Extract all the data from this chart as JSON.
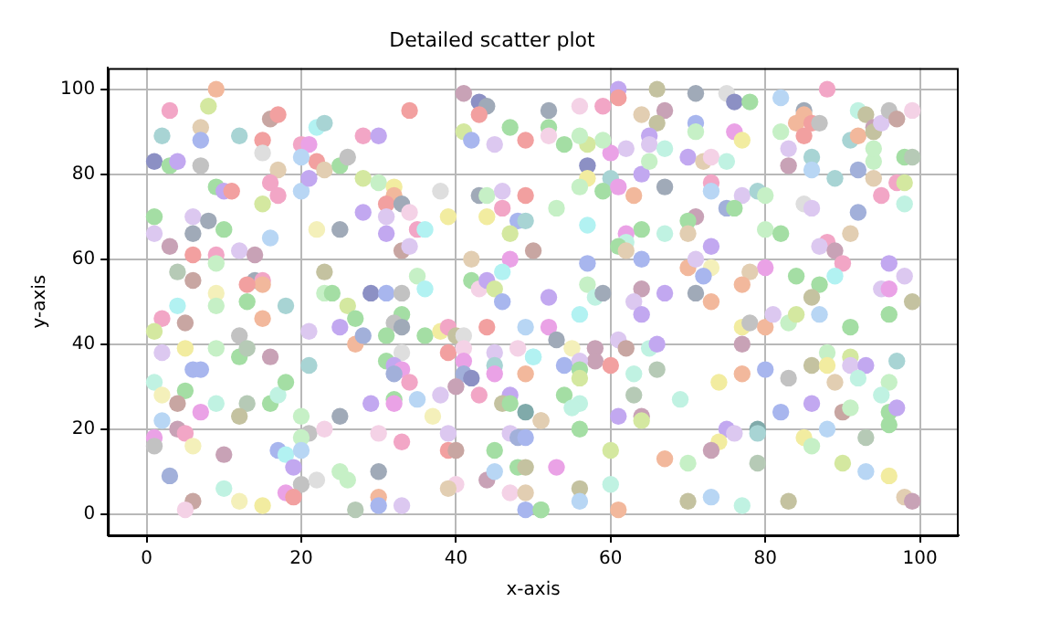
{
  "chart_data": {
    "type": "scatter",
    "title": "Detailed scatter plot",
    "xlabel": "x-axis",
    "ylabel": "y-axis",
    "xlim": [
      -5,
      105
    ],
    "ylim": [
      -5,
      105
    ],
    "xticks": [
      0,
      20,
      40,
      60,
      80,
      100
    ],
    "yticks": [
      0,
      20,
      40,
      60,
      80,
      100
    ],
    "grid": true,
    "marker": "circle",
    "series": [
      {
        "x": [
          9,
          3,
          8,
          16,
          17,
          2,
          7,
          7,
          12,
          15,
          1,
          3,
          4,
          7,
          15,
          17,
          20,
          21,
          22,
          23,
          22,
          23,
          25,
          26,
          20,
          28,
          30,
          34,
          41,
          43,
          44,
          43,
          41,
          42,
          45,
          47,
          49,
          9,
          10,
          11,
          16,
          17,
          15,
          20,
          21,
          28,
          30,
          32,
          32,
          31,
          33,
          34,
          28,
          31,
          35,
          36,
          31,
          39,
          38,
          43,
          44,
          46,
          49,
          44,
          46,
          48,
          49,
          47,
          1,
          1,
          6,
          8,
          10,
          6,
          3,
          6,
          9,
          9,
          12,
          14,
          16,
          22,
          25,
          33,
          34,
          42,
          47,
          50,
          4,
          6,
          14,
          15,
          15,
          13,
          9,
          13,
          4,
          9,
          23,
          23,
          24,
          26,
          29,
          31,
          33,
          35,
          36,
          42,
          43,
          44,
          45,
          46,
          46,
          18,
          61,
          61,
          66,
          71,
          75,
          76,
          78,
          82,
          88,
          52,
          56,
          59,
          52,
          52,
          64,
          67,
          66,
          71,
          71,
          65,
          65,
          67,
          62,
          60,
          59,
          57,
          56,
          54,
          57,
          57,
          60,
          56,
          59,
          61,
          64,
          65,
          63,
          67,
          70,
          72,
          73,
          75,
          76,
          77,
          73,
          73,
          77,
          79,
          80,
          75,
          76,
          71,
          70,
          67,
          70,
          64,
          62,
          62,
          61,
          62,
          53,
          57,
          73,
          80,
          82,
          82,
          84,
          85,
          85,
          86,
          87,
          85,
          83,
          83,
          86,
          86,
          89,
          92,
          94,
          94,
          94,
          91,
          92,
          92,
          93,
          94,
          94,
          95,
          96,
          97,
          99,
          98,
          99,
          97,
          98,
          95,
          98,
          85,
          86,
          92,
          91,
          88,
          87,
          89,
          90,
          89,
          87,
          84,
          80,
          78,
          77,
          73,
          72,
          70,
          71,
          73,
          71,
          67,
          64,
          64,
          57,
          57,
          58,
          59,
          63,
          52,
          96,
          98,
          95,
          96,
          99,
          86,
          2,
          1,
          5,
          15,
          27,
          33,
          32,
          33,
          21,
          25,
          31,
          36,
          38,
          39,
          40,
          41,
          44,
          49,
          12,
          27,
          28,
          2,
          5,
          9,
          12,
          13,
          16,
          6,
          7,
          1,
          2,
          5,
          4,
          7,
          9,
          13,
          16,
          17,
          18,
          21,
          33,
          31,
          32,
          33,
          32,
          34,
          29,
          32,
          32,
          35,
          38,
          37,
          39,
          41,
          41,
          41,
          42,
          40,
          43,
          45,
          45,
          45,
          48,
          50,
          49,
          47,
          46,
          47,
          49,
          51,
          2,
          4,
          5,
          12,
          1,
          1,
          6,
          10,
          20,
          25,
          21,
          20,
          23,
          30,
          33,
          39,
          39,
          40,
          45,
          47,
          48,
          49,
          17,
          18,
          20,
          19,
          3,
          10,
          20,
          22,
          25,
          26,
          30,
          18,
          19,
          6,
          5,
          12,
          15,
          27,
          30,
          30,
          33,
          40,
          39,
          44,
          45,
          48,
          49,
          47,
          49,
          49,
          51,
          64,
          52,
          56,
          53,
          55,
          58,
          58,
          61,
          62,
          65,
          66,
          60,
          56,
          54,
          56,
          56,
          63,
          66,
          50,
          77,
          78,
          80,
          81,
          83,
          84,
          87,
          91,
          96,
          77,
          77,
          80,
          83,
          88,
          86,
          88,
          91,
          91,
          93,
          92,
          89,
          97,
          96,
          95,
          74,
          69,
          63,
          54,
          56,
          55,
          51,
          61,
          64,
          64,
          56,
          82,
          86,
          90,
          91,
          96,
          97,
          96,
          75,
          76,
          79,
          79,
          74,
          73,
          85,
          88,
          86,
          93,
          60,
          67,
          70,
          79,
          53,
          90,
          93,
          96,
          60,
          56,
          56,
          61,
          51,
          70,
          73,
          77,
          83,
          98,
          99
        ],
        "values": [
          100,
          95,
          96,
          93,
          94,
          89,
          91,
          88,
          89,
          88,
          83,
          82,
          83,
          82,
          85,
          81,
          87,
          87,
          91,
          92,
          83,
          81,
          82,
          84,
          84,
          89,
          89,
          95,
          99,
          97,
          96,
          94,
          90,
          88,
          87,
          91,
          88,
          77,
          76,
          76,
          78,
          75,
          73,
          76,
          79,
          79,
          78,
          77,
          75,
          73,
          73,
          71,
          71,
          70,
          67,
          67,
          66,
          70,
          76,
          75,
          75,
          76,
          75,
          70,
          72,
          69,
          69,
          66,
          70,
          66,
          70,
          69,
          67,
          66,
          63,
          61,
          61,
          59,
          62,
          61,
          65,
          67,
          67,
          62,
          63,
          60,
          60,
          62,
          57,
          55,
          55,
          55,
          54,
          54,
          52,
          50,
          49,
          49,
          57,
          52,
          52,
          49,
          52,
          52,
          52,
          56,
          53,
          55,
          53,
          55,
          53,
          57,
          50,
          49,
          100,
          98,
          100,
          99,
          99,
          97,
          97,
          98,
          100,
          95,
          96,
          96,
          91,
          89,
          94,
          95,
          92,
          92,
          90,
          89,
          87,
          86,
          86,
          85,
          88,
          87,
          89,
          87,
          82,
          79,
          79,
          77,
          76,
          77,
          80,
          83,
          75,
          77,
          84,
          83,
          84,
          83,
          90,
          88,
          78,
          76,
          75,
          76,
          75,
          72,
          72,
          70,
          69,
          66,
          66,
          67,
          66,
          64,
          63,
          62,
          72,
          68,
          63,
          67,
          66,
          90,
          92,
          95,
          94,
          92,
          92,
          89,
          86,
          82,
          84,
          81,
          79,
          81,
          79,
          83,
          86,
          88,
          89,
          95,
          94,
          91,
          90,
          92,
          95,
          93,
          95,
          84,
          84,
          78,
          78,
          75,
          73,
          73,
          72,
          71,
          66,
          64,
          63,
          62,
          59,
          56,
          54,
          56,
          58,
          57,
          54,
          58,
          56,
          58,
          60,
          50,
          52,
          52,
          53,
          60,
          59,
          54,
          51,
          52,
          50,
          51,
          59,
          56,
          53,
          53,
          50,
          51,
          46,
          43,
          45,
          46,
          46,
          47,
          45,
          44,
          43,
          44,
          42,
          42,
          43,
          44,
          42,
          42,
          44,
          44,
          42,
          40,
          42,
          38,
          39,
          39,
          37,
          39,
          37,
          34,
          34,
          31,
          28,
          29,
          26,
          24,
          26,
          26,
          26,
          28,
          31,
          35,
          38,
          36,
          35,
          34,
          33,
          31,
          26,
          27,
          26,
          27,
          28,
          23,
          38,
          39,
          36,
          33,
          32,
          30,
          28,
          38,
          35,
          33,
          39,
          37,
          33,
          28,
          26,
          26,
          24,
          22,
          22,
          20,
          19,
          23,
          18,
          16,
          16,
          14,
          23,
          23,
          19,
          18,
          20,
          19,
          17,
          19,
          15,
          15,
          15,
          19,
          18,
          18,
          15,
          14,
          15,
          11,
          9,
          6,
          7,
          8,
          10,
          8,
          10,
          5,
          4,
          3,
          1,
          3,
          2,
          1,
          4,
          2,
          2,
          7,
          6,
          8,
          10,
          11,
          11,
          5,
          5,
          1,
          1,
          47,
          44,
          47,
          41,
          39,
          39,
          36,
          41,
          39,
          39,
          40,
          35,
          36,
          35,
          34,
          32,
          33,
          34,
          37,
          44,
          45,
          44,
          47,
          45,
          47,
          47,
          44,
          47,
          40,
          33,
          34,
          32,
          38,
          35,
          35,
          37,
          35,
          35,
          32,
          31,
          36,
          31,
          28,
          31,
          27,
          28,
          28,
          26,
          25,
          22,
          23,
          23,
          22,
          20,
          24,
          26,
          24,
          25,
          24,
          25,
          21,
          20,
          19,
          20,
          19,
          17,
          15,
          18,
          20,
          16,
          18,
          15,
          13,
          12,
          12,
          11,
          12,
          10,
          9,
          7,
          6,
          3,
          1,
          1,
          3,
          4,
          2,
          3,
          4,
          3
        ],
        "colors": [
          "#f2b89c",
          "#f2a6c6",
          "#d4e8a0",
          "#c8a6a2",
          "#f2a0a0",
          "#a8d4d4",
          "#e2ceb2",
          "#a8b6ee",
          "#a8d4d4",
          "#f2a0a0",
          "#8c90c4",
          "#a4dea4",
          "#c2a8f0",
          "#c2c2c2",
          "#dedede",
          "#e2ceb2",
          "#f2a6c6",
          "#eaa2e6",
          "#b2f2f2",
          "#a8d4d4",
          "#f2a0a0",
          "#e2ceb2",
          "#a4dea4",
          "#c2c2c2",
          "#b8d6f4",
          "#f2a6c6",
          "#c2a8f0",
          "#f2a0a0",
          "#c8a2b6",
          "#8c90c4",
          "#a0aab8",
          "#f2a0a0",
          "#d4e8a0",
          "#a8b6ee",
          "#dcc8f0",
          "#a4dea4",
          "#f2a0a0",
          "#a4dea4",
          "#c2a8f0",
          "#f2a0a0",
          "#f2a6c6",
          "#f2a6c6",
          "#d4e8a0",
          "#b8d6f4",
          "#c2a8f0",
          "#d4e8a0",
          "#c6f0c6",
          "#f2eca0",
          "#f2b89c",
          "#f2a0a0",
          "#a0aab8",
          "#f4d2e6",
          "#c2a8f0",
          "#dcc8f0",
          "#f2a6c6",
          "#b2f2f2",
          "#c2a8f0",
          "#f2eca0",
          "#dedede",
          "#a0aab8",
          "#c6f0c6",
          "#dcc8f0",
          "#f2a0a0",
          "#f2eca0",
          "#f2a6c6",
          "#a8b6ee",
          "#a8d4d4",
          "#d4e8a0",
          "#a4dea4",
          "#dcc8f0",
          "#dcc8f0",
          "#a0aab8",
          "#a4dea4",
          "#a0aab8",
          "#c8a2b6",
          "#f2a0a0",
          "#f2a6c6",
          "#c6f0c6",
          "#dcc8f0",
          "#c8a2b6",
          "#b8d6f4",
          "#f4f0ba",
          "#a0aab8",
          "#c8a6a2",
          "#dcc8f0",
          "#e2ceb2",
          "#eaa2e6",
          "#c8a6a2",
          "#b6cab6",
          "#c8a6a2",
          "#a0aab8",
          "#f2a6c6",
          "#f2b89c",
          "#f2a0a0",
          "#f4f0ba",
          "#a4dea4",
          "#b2f2f2",
          "#c6f0c6",
          "#c4c2a0",
          "#c6f0c6",
          "#a4dea4",
          "#d4e8a0",
          "#8c90c4",
          "#a8b6ee",
          "#c2c2c2",
          "#c6f0c6",
          "#b2f2f2",
          "#a4dea4",
          "#f4d2e6",
          "#c2a8f0",
          "#d4e8a0",
          "#b2f2f2",
          "#a8b6ee",
          "#a8d4d4",
          "#c2a8f0",
          "#f2a0a0",
          "#c4c2a0",
          "#a0aab8",
          "#dedede",
          "#8c90c4",
          "#a4dea4",
          "#b8d6f4",
          "#f2a6c6",
          "#a0aab8",
          "#f4d2e6",
          "#f2a6c6",
          "#a4dea4",
          "#f4d2e6",
          "#e2ceb2",
          "#c8a2b6",
          "#c4c2a0",
          "#a8b6ee",
          "#c6f0c6",
          "#c2a8f0",
          "#dcc8f0",
          "#c0f2e2",
          "#dcc8f0",
          "#eaa2e6",
          "#c6f0c6",
          "#d4e8a0",
          "#c6f0c6",
          "#a4dea4",
          "#8c90c4",
          "#f2eca0",
          "#a8d4d4",
          "#c6f0c6",
          "#a4dea4",
          "#eaa2e6",
          "#c2a8f0",
          "#c6f0c6",
          "#f2b89c",
          "#a0aab8",
          "#c2a8f0",
          "#e2ceb2",
          "#f4d2e6",
          "#c0f2e2",
          "#eaa2e6",
          "#f2eca0",
          "#f2a6c6",
          "#b8d6f4",
          "#dcc8f0",
          "#a8d4d4",
          "#c6f0c6",
          "#a2b0da",
          "#a4dea4",
          "#c8a2b6",
          "#a4dea4",
          "#c0f2e2",
          "#e2ceb2",
          "#a4dea4",
          "#eaa2e6",
          "#c0f2e2",
          "#a4dea4",
          "#e2ceb2",
          "#c6f0c6",
          "#b2f2f2",
          "#c2a8f0",
          "#c6f0c6",
          "#a4dea4",
          "#c6f0c6",
          "#f2b89c",
          "#a0aab8",
          "#f2b89c",
          "#f2a0a0",
          "#c2c2c2",
          "#f2a0a0",
          "#dcc8f0",
          "#c8a2b6",
          "#a8d4d4",
          "#b8d6f4",
          "#a8d4d4",
          "#a2b0da",
          "#e2ceb2",
          "#c6f0c6",
          "#c6f0c6",
          "#a8d4d4",
          "#f2b89c",
          "#c0f2e2",
          "#c4c2a0",
          "#c8a2b6",
          "#c4c2a0",
          "#dcc8f0",
          "#c2c2c2",
          "#c8a6a2",
          "#f4d2e6",
          "#a4dea4",
          "#b6cab6",
          "#f2a6c6",
          "#d4e8a0",
          "#f2a6c6",
          "#c0f2e2",
          "#dedede",
          "#dcc8f0",
          "#a2b0da",
          "#e2ceb2",
          "#f2a6c6",
          "#dcc8f0",
          "#c8a2b6",
          "#f2a6c6",
          "#b2f2f2",
          "#a4dea4",
          "#a4dea4",
          "#eaa2e6",
          "#e2ceb2",
          "#f2b89c",
          "#f4f0ba",
          "#a8b6ee",
          "#f2b89c",
          "#dcc8f0",
          "#f2b89c",
          "#a0aab8",
          "#c2a8f0",
          "#c8a2b6",
          "#a8b6ee",
          "#a8b6ee",
          "#c6f0c6",
          "#c0f2e2",
          "#a0aab8",
          "#dcc8f0",
          "#c2a8f0",
          "#c2a8f0",
          "#dcc8f0",
          "#dcc8f0",
          "#eaa2e6",
          "#c4c2a0",
          "#c4c2a0",
          "#f2a6c6",
          "#d4e8a0",
          "#c8a6a2",
          "#f2b89c",
          "#a4dea4",
          "#a4dea4",
          "#c2c2c2",
          "#a0aab8",
          "#dcc8f0",
          "#c2a8f0",
          "#a4dea4",
          "#a4dea4",
          "#f2eca0",
          "#f2a6c6",
          "#c4c2a0",
          "#dedede",
          "#f2a0a0",
          "#b8d6f4",
          "#c2c2c2",
          "#f2b89c",
          "#a2b0da",
          "#dcc8f0",
          "#f2eca0",
          "#c6f0c6",
          "#a4dea4",
          "#b6cab6",
          "#c8a2b6",
          "#a8b6ee",
          "#a8b6ee",
          "#c0f2e2",
          "#f4f0ba",
          "#a4dea4",
          "#c8a6a2",
          "#eaa2e6",
          "#c0f2e2",
          "#b6cab6",
          "#a4dea4",
          "#c0f2e2",
          "#a4dea4",
          "#a8d4d4",
          "#dedede",
          "#a4dea4",
          "#c2a8f0",
          "#eaa2e6",
          "#a2b0da",
          "#f2a6c6",
          "#c2a8f0",
          "#a4dea4",
          "#eaa2e6",
          "#b8d6f4",
          "#dcc8f0",
          "#f4f0ba",
          "#f2a0a0",
          "#f4d2e6",
          "#eaa2e6",
          "#a2b0da",
          "#8c90c4",
          "#c8a2b6",
          "#f2a6c6",
          "#dcc8f0",
          "#a8d4d4",
          "#eaa2e6",
          "#f4d2e6",
          "#b2f2f2",
          "#f2b89c",
          "#c2a8f0",
          "#c4c2a0",
          "#a4dea4",
          "#80aaaa",
          "#e2ceb2",
          "#b8d6f4",
          "#c8a2b6",
          "#f2a6c6",
          "#c4c2a0",
          "#eaa2e6",
          "#c2c2c2",
          "#f4f0ba",
          "#c8a2b6",
          "#c6f0c6",
          "#a0aab8",
          "#c2c2c2",
          "#c6f0c6",
          "#f4d2e6",
          "#f4d2e6",
          "#f2a6c6",
          "#dcc8f0",
          "#f2a0a0",
          "#c8a6a2",
          "#a4dea4",
          "#dcc8f0",
          "#a2b0da",
          "#a8b6ee",
          "#a8b6ee",
          "#b2f2f2",
          "#b8d6f4",
          "#c2a8f0",
          "#a2b0da",
          "#c0f2e2",
          "#c2c2c2",
          "#dedede",
          "#c6f0c6",
          "#c6f0c6",
          "#a0aab8",
          "#eaa2e6",
          "#f2a0a0",
          "#c8a6a2",
          "#f4d2e6",
          "#f4f0ba",
          "#f2eca0",
          "#b6cab6",
          "#f2b89c",
          "#a8b6ee",
          "#dcc8f0",
          "#f4d2e6",
          "#e2ceb2",
          "#c8a2b6",
          "#b8d6f4",
          "#a4dea4",
          "#c4c2a0",
          "#f4d2e6",
          "#e2ceb2",
          "#a8b6ee",
          "#a4dea4",
          "#c2a8f0",
          "#eaa2e6",
          "#b2f2f2",
          "#a0aab8",
          "#f4f0ba",
          "#c8a2b6",
          "#c8a2b6",
          "#dcc8f0",
          "#c8a6a2",
          "#c0f2e2",
          "#c2a8f0",
          "#f2a0a0",
          "#dcc8f0",
          "#a8b6ee",
          "#a4dea4",
          "#d4e8a0",
          "#c0f2e2",
          "#b6cab6",
          "#b2f2f2",
          "#f2eca0",
          "#c2c2c2",
          "#f2b89c",
          "#dcc8f0",
          "#c6f0c6",
          "#d4e8a0",
          "#b8d6f4",
          "#a4dea4",
          "#a4dea4",
          "#c8a2b6",
          "#f2b89c",
          "#a8b6ee",
          "#c2c2c2",
          "#c6f0c6",
          "#c4c2a0",
          "#f2eca0",
          "#d4e8a0",
          "#dcc8f0",
          "#c2a8f0",
          "#c0f2e2",
          "#e2ceb2",
          "#a8d4d4",
          "#c6f0c6",
          "#c0f2e2",
          "#f2eca0",
          "#c0f2e2",
          "#b6cab6",
          "#a4dea4",
          "#c0f2e2",
          "#c0f2e2",
          "#e2ceb2",
          "#c2a8f0",
          "#c8a2b6",
          "#d4e8a0",
          "#a4dea4",
          "#a8b6ee",
          "#c2a8f0",
          "#c8a6a2",
          "#c6f0c6",
          "#a4dea4",
          "#c2a8f0",
          "#a4dea4",
          "#c2a8f0",
          "#dcc8f0",
          "#80aaaa",
          "#a8d4d4",
          "#f2eca0",
          "#c8a2b6",
          "#f2eca0",
          "#b8d6f4",
          "#c6f0c6",
          "#b6cab6",
          "#d4e8a0",
          "#f2b89c",
          "#c6f0c6",
          "#b6cab6",
          "#eaa2e6",
          "#d4e8a0",
          "#b8d6f4",
          "#f2eca0",
          "#c0f2e2",
          "#c4c2a0",
          "#b8d6f4",
          "#f2b89c",
          "#a4dea4",
          "#c4c2a0",
          "#b8d6f4",
          "#c0f2e2",
          "#c4c2a0",
          "#e2ceb2",
          "#c8a2b6"
        ]
      }
    ]
  }
}
